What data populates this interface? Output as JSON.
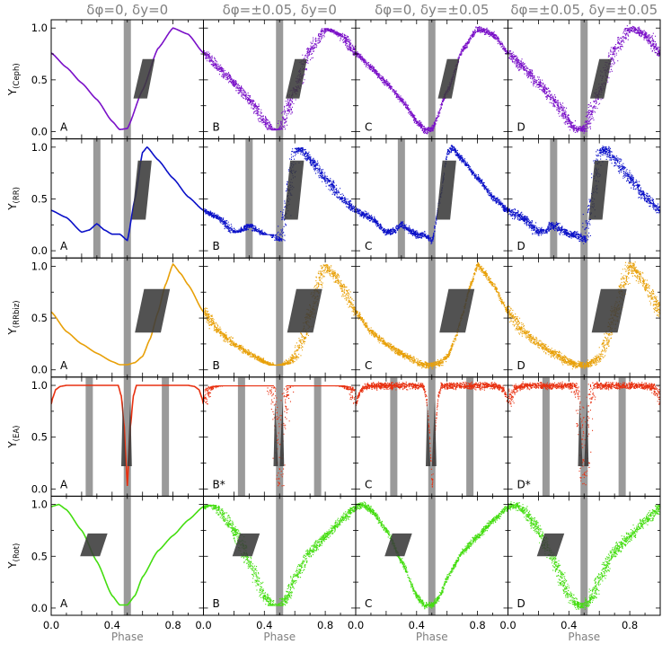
{
  "chart_data": {
    "type": "scatter",
    "xlabel": "Phase",
    "xlim": [
      0.0,
      1.0
    ],
    "ylim": [
      -0.07,
      1.08
    ],
    "x_ticks": [
      "0.0",
      "0.4",
      "0.8"
    ],
    "x_tick_values": [
      0.0,
      0.4,
      0.8
    ],
    "y_ticks": [
      "0.0",
      "0.5",
      "1.0"
    ],
    "y_tick_values": [
      0.0,
      0.5,
      1.0
    ],
    "columns": [
      {
        "title": "δφ=0, δy=0",
        "noise_phase": 0.0,
        "noise_y": 0.0,
        "style": "line"
      },
      {
        "title": "δφ=±0.05, δy=0",
        "noise_phase": 0.05,
        "noise_y": 0.0,
        "style": "points"
      },
      {
        "title": "δφ=0, δy=±0.05",
        "noise_phase": 0.0,
        "noise_y": 0.05,
        "style": "points"
      },
      {
        "title": "δφ=±0.05, δy=±0.05",
        "noise_phase": 0.05,
        "noise_y": 0.05,
        "style": "points"
      }
    ],
    "rows": [
      {
        "ylabel": "Y(Ceph)",
        "ylabel_main": "Y",
        "ylabel_sub": "(Ceph)",
        "color": "#7a10c8",
        "panel_labels": [
          "A",
          "B",
          "C",
          "D"
        ],
        "x": [
          0.0,
          0.1,
          0.2,
          0.3,
          0.4,
          0.45,
          0.5,
          0.6,
          0.7,
          0.8,
          0.9,
          1.0
        ],
        "y": [
          0.76,
          0.62,
          0.47,
          0.31,
          0.1,
          0.02,
          0.03,
          0.4,
          0.8,
          1.0,
          0.94,
          0.76
        ],
        "gray_bars": [
          0.5
        ],
        "box": {
          "x": [
            0.54,
            0.6,
            0.68,
            0.63
          ],
          "y": [
            0.32,
            0.7,
            0.7,
            0.32
          ]
        }
      },
      {
        "ylabel": "Y(RR)",
        "ylabel_main": "Y",
        "ylabel_sub": "(RR)",
        "color": "#0a10c8",
        "panel_labels": [
          "A",
          "B",
          "C",
          "D"
        ],
        "x": [
          0.0,
          0.1,
          0.2,
          0.25,
          0.3,
          0.35,
          0.4,
          0.45,
          0.5,
          0.55,
          0.6,
          0.63,
          0.7,
          0.8,
          0.9,
          1.0
        ],
        "y": [
          0.39,
          0.32,
          0.18,
          0.2,
          0.26,
          0.2,
          0.16,
          0.16,
          0.1,
          0.5,
          0.95,
          1.0,
          0.88,
          0.7,
          0.52,
          0.39
        ],
        "gray_bars": [
          0.3,
          0.5
        ],
        "box": {
          "x": [
            0.53,
            0.57,
            0.66,
            0.62
          ],
          "y": [
            0.3,
            0.87,
            0.87,
            0.3
          ]
        }
      },
      {
        "ylabel": "Y(RRbiz)",
        "ylabel_main": "Y",
        "ylabel_sub": "(RRbiz)",
        "color": "#e8a008",
        "panel_labels": [
          "A",
          "B",
          "C",
          "D"
        ],
        "x": [
          0.0,
          0.1,
          0.2,
          0.3,
          0.4,
          0.45,
          0.5,
          0.55,
          0.6,
          0.65,
          0.7,
          0.75,
          0.8,
          0.85,
          0.9,
          1.0
        ],
        "y": [
          0.56,
          0.37,
          0.25,
          0.16,
          0.08,
          0.05,
          0.05,
          0.07,
          0.13,
          0.3,
          0.55,
          0.82,
          1.02,
          0.93,
          0.82,
          0.56
        ],
        "gray_bars": [
          0.5
        ],
        "box": {
          "x": [
            0.55,
            0.61,
            0.78,
            0.72
          ],
          "y": [
            0.36,
            0.78,
            0.78,
            0.36
          ]
        }
      },
      {
        "ylabel": "Y(EA)",
        "ylabel_main": "Y",
        "ylabel_sub": "(EA)",
        "color": "#e83010",
        "panel_labels": [
          "A",
          "B*",
          "C",
          "D*"
        ],
        "x": [
          0.0,
          0.01,
          0.03,
          0.06,
          0.1,
          0.44,
          0.46,
          0.48,
          0.49,
          0.5,
          0.51,
          0.52,
          0.54,
          0.56,
          0.9,
          0.94,
          0.97,
          0.99,
          1.0
        ],
        "y": [
          0.82,
          0.88,
          0.96,
          0.99,
          1.0,
          1.0,
          0.9,
          0.6,
          0.3,
          0.03,
          0.3,
          0.6,
          0.9,
          1.0,
          1.0,
          0.99,
          0.96,
          0.88,
          0.82
        ],
        "gray_bars": [
          0.25,
          0.5,
          0.75
        ],
        "box": {
          "x": [
            0.46,
            0.47,
            0.49,
            0.5,
            0.52,
            0.53
          ],
          "y": [
            0.22,
            0.86,
            0.22,
            0.22,
            0.86,
            0.22
          ]
        }
      },
      {
        "ylabel": "Y(Rot)",
        "ylabel_main": "Y",
        "ylabel_sub": "(Rot)",
        "color": "#44dd10",
        "panel_labels": [
          "A",
          "B",
          "C",
          "D"
        ],
        "x": [
          0.0,
          0.05,
          0.1,
          0.2,
          0.3,
          0.4,
          0.45,
          0.5,
          0.55,
          0.6,
          0.7,
          0.8,
          0.9,
          1.0
        ],
        "y": [
          0.98,
          1.0,
          0.95,
          0.75,
          0.45,
          0.12,
          0.03,
          0.03,
          0.12,
          0.3,
          0.55,
          0.7,
          0.85,
          0.98
        ],
        "gray_bars": [
          0.5
        ],
        "box": {
          "x": [
            0.19,
            0.24,
            0.37,
            0.32
          ],
          "y": [
            0.5,
            0.72,
            0.72,
            0.5
          ]
        }
      }
    ]
  }
}
